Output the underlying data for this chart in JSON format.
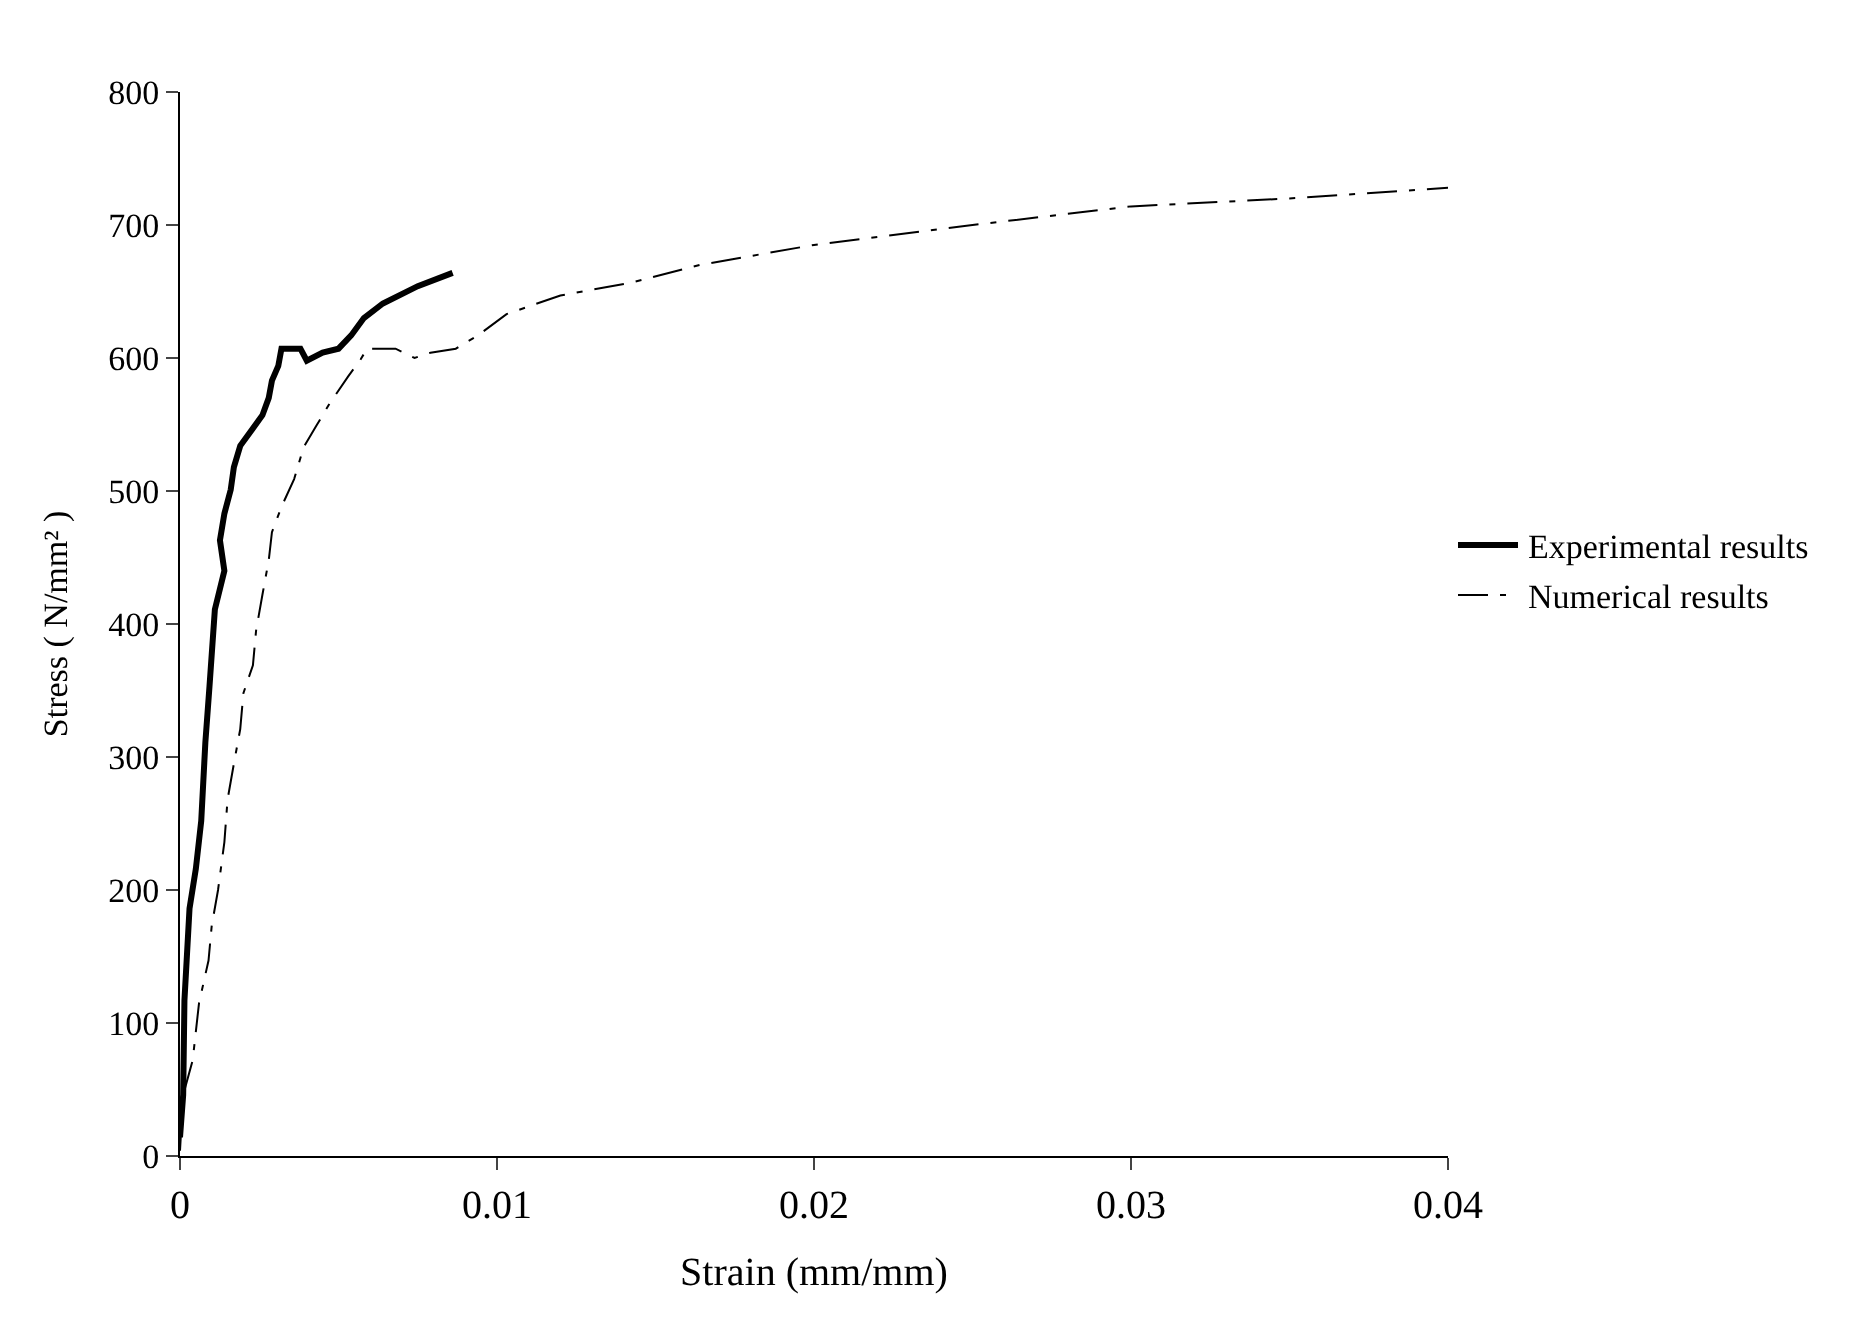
{
  "chart_data": {
    "type": "line",
    "xlabel": "Strain (mm/mm)",
    "ylabel": "Stress ( N/mm² )",
    "xlim": [
      0,
      0.04
    ],
    "xticks": [
      0,
      0.01,
      0.02,
      0.03,
      0.04
    ],
    "ylim": [
      0,
      800
    ],
    "yticks": [
      0,
      100,
      200,
      300,
      400,
      500,
      600,
      700,
      800
    ],
    "legend": "right",
    "marker": "none",
    "series": [
      {
        "name": "Experimental results",
        "color": "#000000",
        "line_style": "solid",
        "x": [
          0,
          0.0001,
          0.00014,
          0.0003,
          0.0005,
          0.00067,
          0.0008,
          0.00093,
          0.0011,
          0.0014,
          0.00126,
          0.0014,
          0.0016,
          0.0017,
          0.0019,
          0.0026,
          0.0028,
          0.0029,
          0.0031,
          0.0032,
          0.0038,
          0.004,
          0.0045,
          0.005,
          0.0054,
          0.0058,
          0.0064,
          0.0075,
          0.0086
        ],
        "values": [
          14,
          46,
          117,
          186,
          216,
          252,
          311,
          353,
          411,
          440,
          463,
          483,
          501,
          518,
          534,
          557,
          570,
          583,
          594,
          607,
          607,
          598,
          604,
          607,
          617,
          630,
          641,
          654,
          664
        ]
      },
      {
        "name": "Numerical results",
        "color": "#000000",
        "line_style": "dashed",
        "x": [
          0,
          0.0001,
          0.0004,
          0.0006,
          0.0009,
          0.001,
          0.0012,
          0.0014,
          0.0015,
          0.0017,
          0.0019,
          0.002,
          0.0023,
          0.0024,
          0.0026,
          0.0028,
          0.0029,
          0.0032,
          0.0036,
          0.0039,
          0.0043,
          0.0047,
          0.0053,
          0.0057,
          0.0059,
          0.0068,
          0.0074,
          0.0079,
          0.0087,
          0.0094,
          0.0103,
          0.012,
          0.0143,
          0.0164,
          0.02,
          0.025,
          0.03,
          0.035,
          0.04
        ],
        "values": [
          4,
          46,
          72,
          115,
          147,
          173,
          200,
          236,
          268,
          295,
          321,
          348,
          369,
          395,
          422,
          448,
          469,
          488,
          509,
          533,
          549,
          565,
          586,
          599,
          607,
          607,
          600,
          604,
          607,
          617,
          633,
          647,
          657,
          670,
          685,
          700,
          714,
          720,
          728
        ]
      }
    ]
  }
}
